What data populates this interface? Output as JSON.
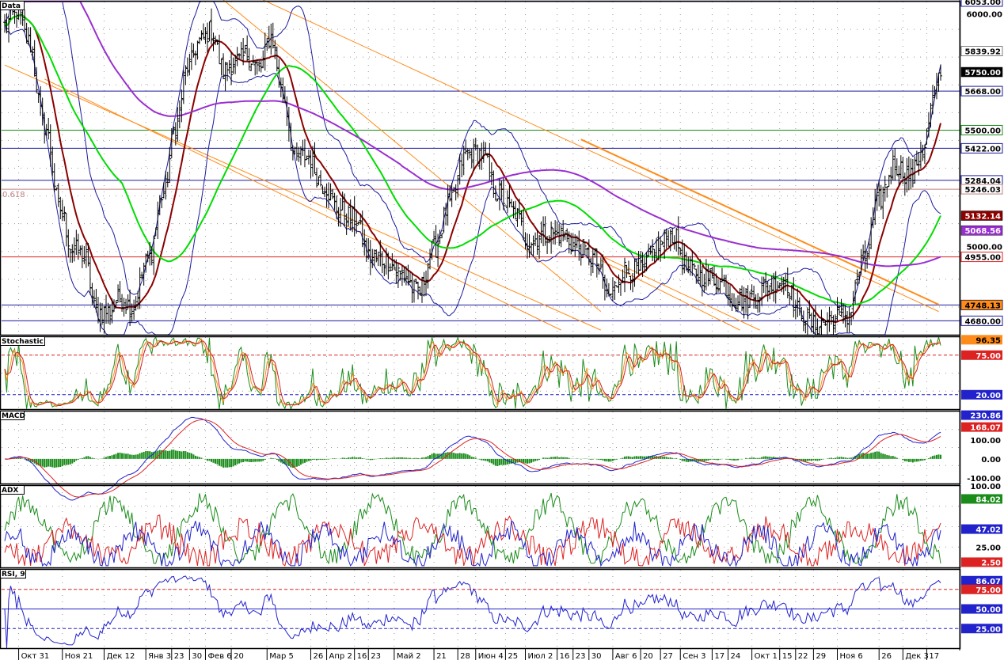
{
  "colors": {
    "price": "#000000",
    "bollinger": "#1b1b9e",
    "ma_short": "#8b0000",
    "ma_mid": "#00dd00",
    "ma_long": "#9a2fd0",
    "channel": "#ff8c1a",
    "grid_dot": "#999999",
    "stoch_k": "#1a8c1a",
    "stoch_d1": "#ff8c1a",
    "stoch_d2": "#cc2222",
    "macd_line": "#2222cc",
    "macd_signal": "#dd2222",
    "macd_hist": "#1a8c1a",
    "adx_plus": "#1a8c1a",
    "adx_minus": "#dd2222",
    "adx_main": "#2222cc",
    "rsi": "#2222cc"
  },
  "chart_data": [
    {
      "panel": "price",
      "type": "line",
      "title": "Data",
      "fib_label": "0.618",
      "y_ticks": [
        "6000.00",
        "5000.00"
      ],
      "ylim": [
        4620,
        6053
      ],
      "grid": true,
      "horizontal_levels": [
        {
          "value": 6053,
          "label": "6053.00",
          "color": "#1b1b9e"
        },
        {
          "value": 5668,
          "label": "5668.00",
          "color": "#1b1b9e"
        },
        {
          "value": 5500,
          "label": "5500.00",
          "color": "#1a8c1a"
        },
        {
          "value": 5422,
          "label": "5422.00",
          "color": "#1b1b9e"
        },
        {
          "value": 5284.04,
          "label": "5284.04",
          "color": "#1b1b9e"
        },
        {
          "value": 5246.03,
          "label": "5246.03",
          "color": "#c08080"
        },
        {
          "value": 4955,
          "label": "4955.00",
          "color": "#dd2222"
        },
        {
          "value": 4748.13,
          "label": "4748.13",
          "color": "#1b1b9e"
        },
        {
          "value": 4680,
          "label": "4680.00",
          "color": "#1b1b9e"
        }
      ],
      "value_badges": [
        {
          "value": 5839.92,
          "label": "5839.92",
          "bg": "#ffffff",
          "fg": "#000000"
        },
        {
          "value": 5750,
          "label": "5750.00",
          "bg": "#000000",
          "fg": "#ffffff"
        },
        {
          "value": 5132.14,
          "label": "5132.14",
          "bg": "#8b0000",
          "fg": "#ffffff"
        },
        {
          "value": 5068.56,
          "label": "5068.56",
          "bg": "#9a2fd0",
          "fg": "#ffffff"
        },
        {
          "value": 4748.13,
          "label": "4748.13",
          "bg": "#ff8c1a",
          "fg": "#000000"
        }
      ],
      "price_anchors": [
        [
          0,
          5950
        ],
        [
          6,
          6010
        ],
        [
          12,
          5880
        ],
        [
          20,
          5520
        ],
        [
          28,
          5160
        ],
        [
          34,
          4990
        ],
        [
          40,
          4960
        ],
        [
          46,
          4720
        ],
        [
          52,
          4720
        ],
        [
          58,
          4780
        ],
        [
          64,
          4740
        ],
        [
          72,
          4940
        ],
        [
          80,
          5230
        ],
        [
          86,
          5520
        ],
        [
          92,
          5770
        ],
        [
          98,
          5880
        ],
        [
          104,
          5930
        ],
        [
          110,
          5760
        ],
        [
          116,
          5790
        ],
        [
          122,
          5820
        ],
        [
          128,
          5760
        ],
        [
          134,
          5900
        ],
        [
          140,
          5650
        ],
        [
          146,
          5380
        ],
        [
          152,
          5390
        ],
        [
          160,
          5270
        ],
        [
          168,
          5160
        ],
        [
          176,
          5120
        ],
        [
          184,
          4950
        ],
        [
          192,
          4940
        ],
        [
          200,
          4880
        ],
        [
          208,
          4800
        ],
        [
          216,
          4990
        ],
        [
          224,
          5180
        ],
        [
          232,
          5400
        ],
        [
          240,
          5400
        ],
        [
          248,
          5230
        ],
        [
          256,
          5150
        ],
        [
          264,
          5020
        ],
        [
          272,
          5060
        ],
        [
          280,
          5050
        ],
        [
          288,
          5000
        ],
        [
          296,
          4950
        ],
        [
          304,
          4790
        ],
        [
          312,
          4900
        ],
        [
          320,
          4890
        ],
        [
          328,
          5000
        ],
        [
          336,
          5050
        ],
        [
          344,
          4900
        ],
        [
          352,
          4870
        ],
        [
          360,
          4850
        ],
        [
          368,
          4770
        ],
        [
          376,
          4780
        ],
        [
          384,
          4830
        ],
        [
          392,
          4860
        ],
        [
          400,
          4720
        ],
        [
          408,
          4660
        ],
        [
          416,
          4690
        ],
        [
          424,
          4700
        ],
        [
          432,
          4930
        ],
        [
          440,
          5200
        ],
        [
          448,
          5350
        ],
        [
          456,
          5300
        ],
        [
          462,
          5420
        ],
        [
          468,
          5640
        ],
        [
          471,
          5750
        ]
      ],
      "x_ticks": [
        "Окт 31",
        "Ноя 21",
        "Дек 12",
        "Янв 3",
        "23",
        "30",
        "Фев 6",
        "20",
        "Мар 5",
        "26",
        "Апр 2",
        "16",
        "23",
        "Май 2",
        "21",
        "28",
        "Июн 4",
        "25",
        "Июл 2",
        "16",
        "23",
        "30",
        "Авг 6",
        "20",
        "27",
        "Сен 3",
        "17",
        "24",
        "Окт 1",
        "15",
        "22",
        "29",
        "Ноя 6",
        "26",
        "Дек 3",
        "17"
      ],
      "x_tick_bars": [
        7,
        29,
        50,
        71,
        84,
        93,
        101,
        114,
        132,
        154,
        162,
        176,
        183,
        196,
        216,
        228,
        237,
        252,
        262,
        278,
        286,
        294,
        306,
        320,
        330,
        340,
        356,
        364,
        376,
        390,
        398,
        407,
        419,
        440,
        452,
        464
      ]
    },
    {
      "panel": "stochastic",
      "type": "line",
      "title": "Stochastic",
      "ylim": [
        0,
        100
      ],
      "levels": [
        {
          "value": 75,
          "label": "75.00"
        },
        {
          "value": 20,
          "label": "20.00"
        }
      ],
      "last_value": "96.35",
      "series": [
        {
          "name": "",
          "color": "#1a8c1a"
        },
        {
          "name": "",
          "color": "#ff8c1a"
        },
        {
          "name": "",
          "color": "#cc2222"
        }
      ]
    },
    {
      "panel": "macd",
      "type": "line",
      "title": "MACD",
      "ylim": [
        -130,
        250
      ],
      "y_ticks": [
        "100.00",
        "0.00",
        "-100.00"
      ],
      "last_values": {
        "macd": "230.86",
        "signal": "168.07"
      }
    },
    {
      "panel": "adx",
      "type": "line",
      "title": "ADX",
      "ylim": [
        0,
        100
      ],
      "y_ticks": [
        "100.00",
        "25.00"
      ],
      "last_values": {
        "plus_di": "84.02",
        "adx": "47.02",
        "minus_di": "2.50"
      }
    },
    {
      "panel": "rsi",
      "type": "line",
      "title": "RSI, 9",
      "ylim": [
        0,
        100
      ],
      "levels": [
        {
          "value": 75,
          "label": "75.00"
        },
        {
          "value": 50,
          "label": "50.00"
        },
        {
          "value": 25,
          "label": "25.00"
        }
      ],
      "last_value": "86.07"
    }
  ]
}
